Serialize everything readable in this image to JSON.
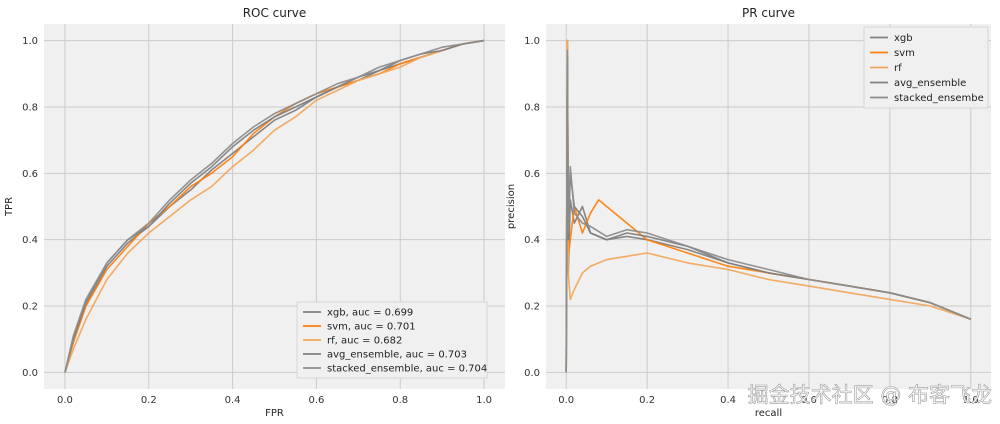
{
  "watermark": "掘金技术社区 @ 布客飞龙",
  "colors": {
    "gray": "#7f7f7f",
    "orange": "#ff7f0e",
    "orange_light": "#f2a55a",
    "panel_bg": "#f0f0f0",
    "grid": "#cbcbcb"
  },
  "chart_data": [
    {
      "type": "line",
      "title": "ROC curve",
      "xlabel": "FPR",
      "ylabel": "TPR",
      "xlim": [
        -0.05,
        1.05
      ],
      "ylim": [
        -0.05,
        1.05
      ],
      "xticks": [
        "0.0",
        "0.2",
        "0.4",
        "0.6",
        "0.8",
        "1.0"
      ],
      "yticks": [
        "0.0",
        "0.2",
        "0.4",
        "0.6",
        "0.8",
        "1.0"
      ],
      "grid": true,
      "legend_position": "lower-right",
      "series": [
        {
          "name": "xgb, auc = 0.699",
          "color": "#7f7f7f",
          "x": [
            0,
            0.02,
            0.05,
            0.1,
            0.15,
            0.2,
            0.25,
            0.3,
            0.35,
            0.4,
            0.45,
            0.5,
            0.55,
            0.6,
            0.65,
            0.7,
            0.75,
            0.8,
            0.85,
            0.9,
            0.95,
            1.0
          ],
          "y": [
            0,
            0.1,
            0.2,
            0.32,
            0.39,
            0.44,
            0.5,
            0.55,
            0.61,
            0.66,
            0.71,
            0.76,
            0.79,
            0.83,
            0.86,
            0.88,
            0.91,
            0.93,
            0.95,
            0.97,
            0.99,
            1.0
          ]
        },
        {
          "name": "svm, auc = 0.701",
          "color": "#ff7f0e",
          "x": [
            0,
            0.02,
            0.05,
            0.1,
            0.15,
            0.2,
            0.25,
            0.3,
            0.35,
            0.4,
            0.45,
            0.5,
            0.55,
            0.6,
            0.65,
            0.7,
            0.75,
            0.8,
            0.85,
            0.9,
            0.95,
            1.0
          ],
          "y": [
            0,
            0.09,
            0.2,
            0.31,
            0.38,
            0.45,
            0.5,
            0.56,
            0.6,
            0.65,
            0.72,
            0.77,
            0.81,
            0.84,
            0.86,
            0.88,
            0.9,
            0.93,
            0.95,
            0.97,
            0.99,
            1.0
          ]
        },
        {
          "name": "rf, auc = 0.682",
          "color": "#f2a55a",
          "x": [
            0,
            0.02,
            0.05,
            0.1,
            0.15,
            0.2,
            0.25,
            0.3,
            0.35,
            0.4,
            0.45,
            0.5,
            0.55,
            0.6,
            0.65,
            0.7,
            0.75,
            0.8,
            0.85,
            0.9,
            0.95,
            1.0
          ],
          "y": [
            0,
            0.07,
            0.16,
            0.28,
            0.36,
            0.42,
            0.47,
            0.52,
            0.56,
            0.62,
            0.67,
            0.73,
            0.77,
            0.82,
            0.85,
            0.88,
            0.9,
            0.92,
            0.95,
            0.97,
            0.99,
            1.0
          ]
        },
        {
          "name": "avg_ensemble, auc = 0.703",
          "color": "#808080",
          "x": [
            0,
            0.02,
            0.05,
            0.1,
            0.15,
            0.2,
            0.25,
            0.3,
            0.35,
            0.4,
            0.45,
            0.5,
            0.55,
            0.6,
            0.65,
            0.7,
            0.75,
            0.8,
            0.85,
            0.9,
            0.95,
            1.0
          ],
          "y": [
            0,
            0.1,
            0.21,
            0.33,
            0.4,
            0.44,
            0.51,
            0.57,
            0.62,
            0.68,
            0.73,
            0.77,
            0.8,
            0.83,
            0.86,
            0.89,
            0.91,
            0.94,
            0.96,
            0.97,
            0.99,
            1.0
          ]
        },
        {
          "name": "stacked_ensemble, auc = 0.704",
          "color": "#8c8c8c",
          "x": [
            0,
            0.02,
            0.05,
            0.1,
            0.15,
            0.2,
            0.25,
            0.3,
            0.35,
            0.4,
            0.45,
            0.5,
            0.55,
            0.6,
            0.65,
            0.7,
            0.75,
            0.8,
            0.85,
            0.9,
            0.95,
            1.0
          ],
          "y": [
            0,
            0.11,
            0.22,
            0.33,
            0.4,
            0.45,
            0.52,
            0.58,
            0.63,
            0.69,
            0.74,
            0.78,
            0.81,
            0.84,
            0.87,
            0.89,
            0.92,
            0.94,
            0.96,
            0.98,
            0.99,
            1.0
          ]
        }
      ]
    },
    {
      "type": "line",
      "title": "PR curve",
      "xlabel": "recall",
      "ylabel": "precision",
      "xlim": [
        -0.05,
        1.05
      ],
      "ylim": [
        -0.05,
        1.05
      ],
      "xticks": [
        "0.0",
        "0.2",
        "0.4",
        "0.6",
        "0.8",
        "1.0"
      ],
      "yticks": [
        "0.0",
        "0.2",
        "0.4",
        "0.6",
        "0.8",
        "1.0"
      ],
      "grid": true,
      "legend_position": "upper-right",
      "series": [
        {
          "name": "xgb",
          "color": "#7f7f7f",
          "x": [
            0,
            0.003,
            0.005,
            0.01,
            0.02,
            0.04,
            0.06,
            0.1,
            0.15,
            0.2,
            0.3,
            0.4,
            0.5,
            0.6,
            0.7,
            0.8,
            0.9,
            1.0
          ],
          "y": [
            0,
            1.0,
            0.3,
            0.52,
            0.45,
            0.5,
            0.42,
            0.4,
            0.41,
            0.4,
            0.37,
            0.33,
            0.3,
            0.28,
            0.26,
            0.24,
            0.21,
            0.16
          ]
        },
        {
          "name": "svm",
          "color": "#ff7f0e",
          "x": [
            0,
            0.003,
            0.005,
            0.01,
            0.02,
            0.04,
            0.06,
            0.08,
            0.1,
            0.15,
            0.2,
            0.3,
            0.4,
            0.5,
            0.6,
            0.7,
            0.8,
            0.9,
            1.0
          ],
          "y": [
            0,
            1.0,
            0.35,
            0.4,
            0.5,
            0.42,
            0.48,
            0.52,
            0.5,
            0.45,
            0.4,
            0.36,
            0.32,
            0.3,
            0.28,
            0.26,
            0.24,
            0.21,
            0.16
          ]
        },
        {
          "name": "rf",
          "color": "#f2a55a",
          "x": [
            0,
            0.003,
            0.005,
            0.01,
            0.02,
            0.04,
            0.06,
            0.1,
            0.15,
            0.2,
            0.3,
            0.4,
            0.5,
            0.6,
            0.7,
            0.8,
            0.9,
            1.0
          ],
          "y": [
            0,
            1.0,
            0.3,
            0.22,
            0.25,
            0.3,
            0.32,
            0.34,
            0.35,
            0.36,
            0.33,
            0.31,
            0.28,
            0.26,
            0.24,
            0.22,
            0.2,
            0.16
          ]
        },
        {
          "name": "avg_ensemble",
          "color": "#808080",
          "x": [
            0,
            0.003,
            0.005,
            0.01,
            0.02,
            0.04,
            0.06,
            0.1,
            0.15,
            0.2,
            0.3,
            0.4,
            0.5,
            0.6,
            0.7,
            0.8,
            0.9,
            1.0
          ],
          "y": [
            0,
            0.95,
            0.4,
            0.6,
            0.5,
            0.47,
            0.42,
            0.4,
            0.42,
            0.41,
            0.38,
            0.33,
            0.3,
            0.28,
            0.26,
            0.24,
            0.21,
            0.16
          ]
        },
        {
          "name": "stacked_ensembe",
          "color": "#8c8c8c",
          "x": [
            0,
            0.003,
            0.005,
            0.01,
            0.02,
            0.04,
            0.06,
            0.1,
            0.15,
            0.2,
            0.3,
            0.4,
            0.5,
            0.6,
            0.7,
            0.8,
            0.9,
            1.0
          ],
          "y": [
            0,
            0.97,
            0.42,
            0.62,
            0.48,
            0.45,
            0.44,
            0.41,
            0.43,
            0.42,
            0.38,
            0.34,
            0.31,
            0.28,
            0.26,
            0.24,
            0.21,
            0.16
          ]
        }
      ]
    }
  ]
}
